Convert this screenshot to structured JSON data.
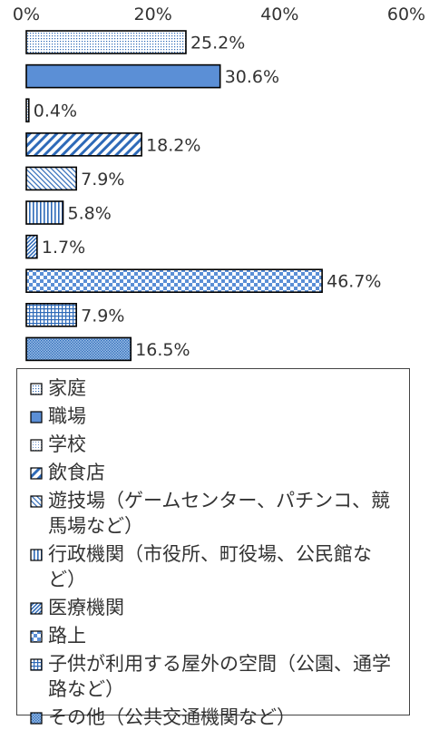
{
  "chart_data": {
    "type": "bar",
    "orientation": "horizontal",
    "categories": [
      "家庭",
      "職場",
      "学校",
      "飲食店",
      "遊技場（ゲームセンター、パチンコ、競馬場など）",
      "行政機関（市役所、町役場、公民館など）",
      "医療機関",
      "路上",
      "子供が利用する屋外の空間（公園、通学路など）",
      "その他（公共交通機関など）"
    ],
    "values": [
      25.2,
      30.6,
      0.4,
      18.2,
      7.9,
      5.8,
      1.7,
      46.7,
      7.9,
      16.5
    ],
    "data_labels": [
      "25.2%",
      "30.6%",
      "0.4%",
      "18.2%",
      "7.9%",
      "5.8%",
      "1.7%",
      "46.7%",
      "7.9%",
      "16.5%"
    ],
    "xlim": [
      0,
      60
    ],
    "x_ticks": [
      0,
      20,
      40,
      60
    ],
    "x_tick_labels": [
      "0%",
      "20%",
      "40%",
      "60%"
    ],
    "axis_position": "top",
    "grid": false,
    "legend_position": "bottom",
    "title": "",
    "xlabel": "",
    "ylabel": "",
    "patterns": [
      "dots",
      "solid-blue",
      "light-dots",
      "diagonal-wide",
      "diagonal-fine",
      "vertical",
      "diagonal-dense",
      "checker",
      "grid",
      "dense-dots"
    ],
    "colors": {
      "blue": "#5b8fd6",
      "stroke": "#000000",
      "text": "#333333"
    }
  }
}
